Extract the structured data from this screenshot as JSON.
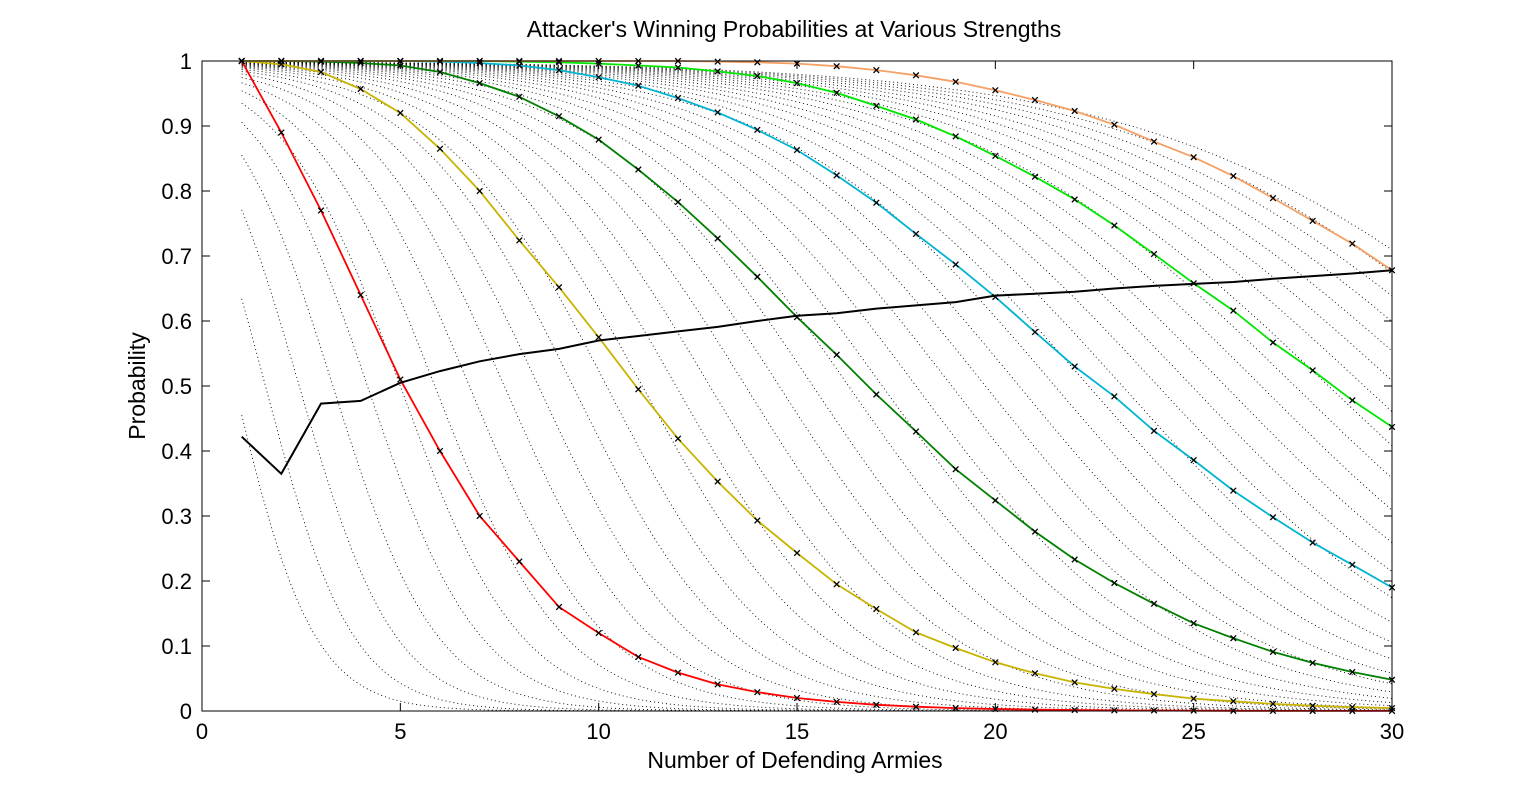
{
  "chart_data": {
    "type": "line",
    "title": "Attacker's Winning Probabilities at Various Strengths",
    "xlabel": "Number of Defending Armies",
    "ylabel": "Probability",
    "xlim": [
      0,
      30
    ],
    "ylim": [
      0,
      1
    ],
    "xticks": [
      "0",
      "5",
      "10",
      "15",
      "20",
      "25",
      "30"
    ],
    "yticks": [
      "0",
      "0.1",
      "0.2",
      "0.3",
      "0.4",
      "0.5",
      "0.6",
      "0.7",
      "0.8",
      "0.9",
      "1"
    ],
    "grid": false,
    "x": [
      1,
      2,
      3,
      4,
      5,
      6,
      7,
      8,
      9,
      10,
      11,
      12,
      13,
      14,
      15,
      16,
      17,
      18,
      19,
      20,
      21,
      22,
      23,
      24,
      25,
      26,
      27,
      28,
      29,
      30
    ],
    "series": [
      {
        "color": "#ff0000",
        "marker": "x",
        "values": [
          1.0,
          0.89,
          0.77,
          0.64,
          0.51,
          0.4,
          0.3,
          0.23,
          0.16,
          0.12,
          0.083,
          0.059,
          0.041,
          0.029,
          0.02,
          0.014,
          0.0095,
          0.0066,
          0.0045,
          0.0031,
          0.0021,
          0.0015,
          0.001,
          0.0007,
          0.0005,
          0.0003,
          0.0002,
          0.0001,
          0.0001,
          0.0001
        ]
      },
      {
        "color": "#c8b400",
        "marker": "x",
        "values": [
          1.0,
          0.995,
          0.983,
          0.957,
          0.92,
          0.865,
          0.8,
          0.724,
          0.652,
          0.575,
          0.495,
          0.419,
          0.353,
          0.293,
          0.243,
          0.195,
          0.157,
          0.121,
          0.097,
          0.075,
          0.058,
          0.044,
          0.034,
          0.026,
          0.019,
          0.015,
          0.011,
          0.008,
          0.006,
          0.0045
        ]
      },
      {
        "color": "#008000",
        "marker": "x",
        "values": [
          1.0,
          1.0,
          0.999,
          0.997,
          0.993,
          0.983,
          0.966,
          0.945,
          0.915,
          0.879,
          0.833,
          0.783,
          0.727,
          0.668,
          0.606,
          0.548,
          0.487,
          0.43,
          0.372,
          0.324,
          0.276,
          0.233,
          0.197,
          0.165,
          0.135,
          0.112,
          0.091,
          0.074,
          0.06,
          0.048
        ]
      },
      {
        "color": "#00b4d2",
        "marker": "x",
        "values": [
          1.0,
          1.0,
          1.0,
          1.0,
          1.0,
          0.999,
          0.997,
          0.993,
          0.986,
          0.975,
          0.962,
          0.943,
          0.921,
          0.894,
          0.863,
          0.824,
          0.782,
          0.734,
          0.687,
          0.637,
          0.583,
          0.53,
          0.484,
          0.431,
          0.386,
          0.339,
          0.298,
          0.259,
          0.225,
          0.19
        ]
      },
      {
        "color": "#00e600",
        "marker": "x",
        "values": [
          1.0,
          1.0,
          1.0,
          1.0,
          1.0,
          1.0,
          1.0,
          0.999,
          0.998,
          0.996,
          0.993,
          0.99,
          0.984,
          0.977,
          0.966,
          0.951,
          0.931,
          0.91,
          0.884,
          0.854,
          0.822,
          0.787,
          0.747,
          0.703,
          0.658,
          0.616,
          0.567,
          0.524,
          0.478,
          0.437
        ]
      },
      {
        "color": "#f5a064",
        "marker": "x",
        "values": [
          1.0,
          1.0,
          1.0,
          1.0,
          1.0,
          1.0,
          1.0,
          1.0,
          1.0,
          1.0,
          1.0,
          1.0,
          0.999,
          0.998,
          0.996,
          0.992,
          0.986,
          0.978,
          0.968,
          0.955,
          0.94,
          0.923,
          0.902,
          0.876,
          0.852,
          0.823,
          0.789,
          0.754,
          0.719,
          0.678
        ]
      },
      {
        "color": "#000000",
        "marker": "none",
        "values": [
          0.422,
          0.365,
          0.473,
          0.477,
          0.505,
          0.523,
          0.538,
          0.549,
          0.557,
          0.57,
          0.577,
          0.584,
          0.591,
          0.6,
          0.608,
          0.612,
          0.619,
          0.624,
          0.629,
          0.639,
          0.642,
          0.645,
          0.65,
          0.654,
          0.657,
          0.66,
          0.665,
          0.669,
          0.673,
          0.678
        ]
      }
    ],
    "background_curves": {
      "style": "dotted",
      "color": "#000000",
      "midpoints": [
        0.82,
        1.6,
        2.45,
        3.3,
        4.17,
        5.0,
        5.87,
        6.74,
        7.62,
        8.48,
        9.35,
        10.2,
        11.1,
        11.95,
        12.8,
        13.7,
        14.55,
        15.4,
        16.3,
        17.15,
        18.0,
        18.9,
        19.75,
        20.6,
        21.5,
        22.35,
        23.2,
        24.1,
        24.95,
        25.8,
        26.7,
        27.55,
        28.4,
        29.3,
        30.15,
        31.0,
        31.9,
        32.75,
        33.6,
        34.5
      ]
    }
  }
}
